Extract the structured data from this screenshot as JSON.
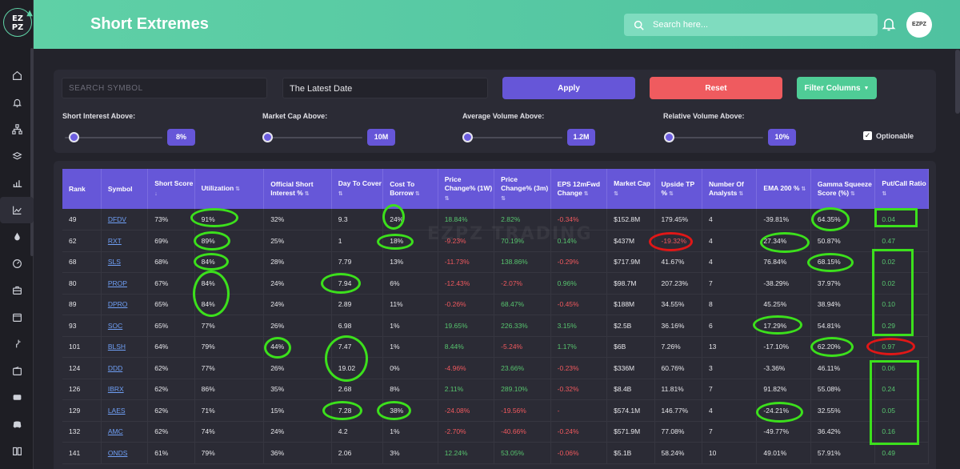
{
  "app": {
    "logo_text": "EZ PZ"
  },
  "header": {
    "title": "Short Extremes",
    "search_placeholder": "Search here...",
    "avatar_text": "EZPZ"
  },
  "filters": {
    "symbol_placeholder": "SEARCH SYMBOL",
    "date_value": "The Latest Date",
    "apply_label": "Apply",
    "reset_label": "Reset",
    "filter_columns_label": "Filter Columns",
    "sliders": [
      {
        "label": "Short Interest Above:",
        "value": "8%"
      },
      {
        "label": "Market Cap Above:",
        "value": "10M"
      },
      {
        "label": "Average Volume Above:",
        "value": "1.2M"
      },
      {
        "label": "Relative Volume Above:",
        "value": "10%"
      }
    ],
    "optionable_label": "Optionable",
    "optionable_checked": true
  },
  "watermark": "EZPZ TRADING",
  "table": {
    "columns": [
      "Rank",
      "Symbol",
      "Short Score",
      "Utilization",
      "Official Short Interest %",
      "Day To Cover",
      "Cost To Borrow",
      "Price Change% (1W)",
      "Price Change% (3m)",
      "EPS 12mFwd Change",
      "Market Cap",
      "Upside TP %",
      "Number Of Analysts",
      "EMA 200 %",
      "Gamma Squeeze Score (%)",
      "Put/Call Ratio"
    ],
    "rows": [
      [
        "49",
        "DFDV",
        "73%",
        "91%",
        "32%",
        "9.3",
        "24%",
        "18.84%",
        "2.82%",
        "-0.34%",
        "$152.8M",
        "179.45%",
        "4",
        "-39.81%",
        "64.35%",
        "0.04"
      ],
      [
        "62",
        "RXT",
        "69%",
        "89%",
        "25%",
        "1",
        "18%",
        "-9.23%",
        "70.19%",
        "0.14%",
        "$437M",
        "-19.32%",
        "4",
        "27.34%",
        "50.87%",
        "0.47"
      ],
      [
        "68",
        "SLS",
        "68%",
        "84%",
        "28%",
        "7.79",
        "13%",
        "-11.73%",
        "138.86%",
        "-0.29%",
        "$717.9M",
        "41.67%",
        "4",
        "76.84%",
        "68.15%",
        "0.02"
      ],
      [
        "80",
        "PROP",
        "67%",
        "84%",
        "24%",
        "7.94",
        "6%",
        "-12.43%",
        "-2.07%",
        "0.96%",
        "$98.7M",
        "207.23%",
        "7",
        "-38.29%",
        "37.97%",
        "0.02"
      ],
      [
        "89",
        "DPRO",
        "65%",
        "84%",
        "24%",
        "2.89",
        "11%",
        "-0.26%",
        "68.47%",
        "-0.45%",
        "$188M",
        "34.55%",
        "8",
        "45.25%",
        "38.94%",
        "0.10"
      ],
      [
        "93",
        "SOC",
        "65%",
        "77%",
        "26%",
        "6.98",
        "1%",
        "19.65%",
        "226.33%",
        "3.15%",
        "$2.5B",
        "36.16%",
        "6",
        "17.29%",
        "54.81%",
        "0.29"
      ],
      [
        "101",
        "BLSH",
        "64%",
        "79%",
        "44%",
        "7.47",
        "1%",
        "8.44%",
        "-5.24%",
        "1.17%",
        "$6B",
        "7.26%",
        "13",
        "-17.10%",
        "62.20%",
        "0.97"
      ],
      [
        "124",
        "DDD",
        "62%",
        "77%",
        "26%",
        "19.02",
        "0%",
        "-4.96%",
        "23.66%",
        "-0.23%",
        "$336M",
        "60.76%",
        "3",
        "-3.36%",
        "46.11%",
        "0.06"
      ],
      [
        "126",
        "IBRX",
        "62%",
        "86%",
        "35%",
        "2.68",
        "8%",
        "2.11%",
        "289.10%",
        "-0.32%",
        "$8.4B",
        "11.81%",
        "7",
        "91.82%",
        "55.08%",
        "0.24"
      ],
      [
        "129",
        "LAES",
        "62%",
        "71%",
        "15%",
        "7.28",
        "38%",
        "-24.08%",
        "-19.56%",
        "-",
        "$574.1M",
        "146.77%",
        "4",
        "-24.21%",
        "32.55%",
        "0.05"
      ],
      [
        "132",
        "AMC",
        "62%",
        "74%",
        "24%",
        "4.2",
        "1%",
        "-2.70%",
        "-40.66%",
        "-0.24%",
        "$571.9M",
        "77.08%",
        "7",
        "-49.77%",
        "36.42%",
        "0.16"
      ],
      [
        "141",
        "ONDS",
        "61%",
        "79%",
        "36%",
        "2.06",
        "3%",
        "12.24%",
        "53.05%",
        "-0.06%",
        "$5.1B",
        "58.24%",
        "10",
        "49.01%",
        "57.91%",
        "0.49"
      ]
    ]
  },
  "colors": {
    "accent": "#6657d8",
    "header": "#5fd0a6",
    "positive": "#57c46e",
    "negative": "#f0595e",
    "link": "#6f9ff5",
    "annotation_green": "#3ce01c",
    "annotation_red": "#e01717"
  }
}
